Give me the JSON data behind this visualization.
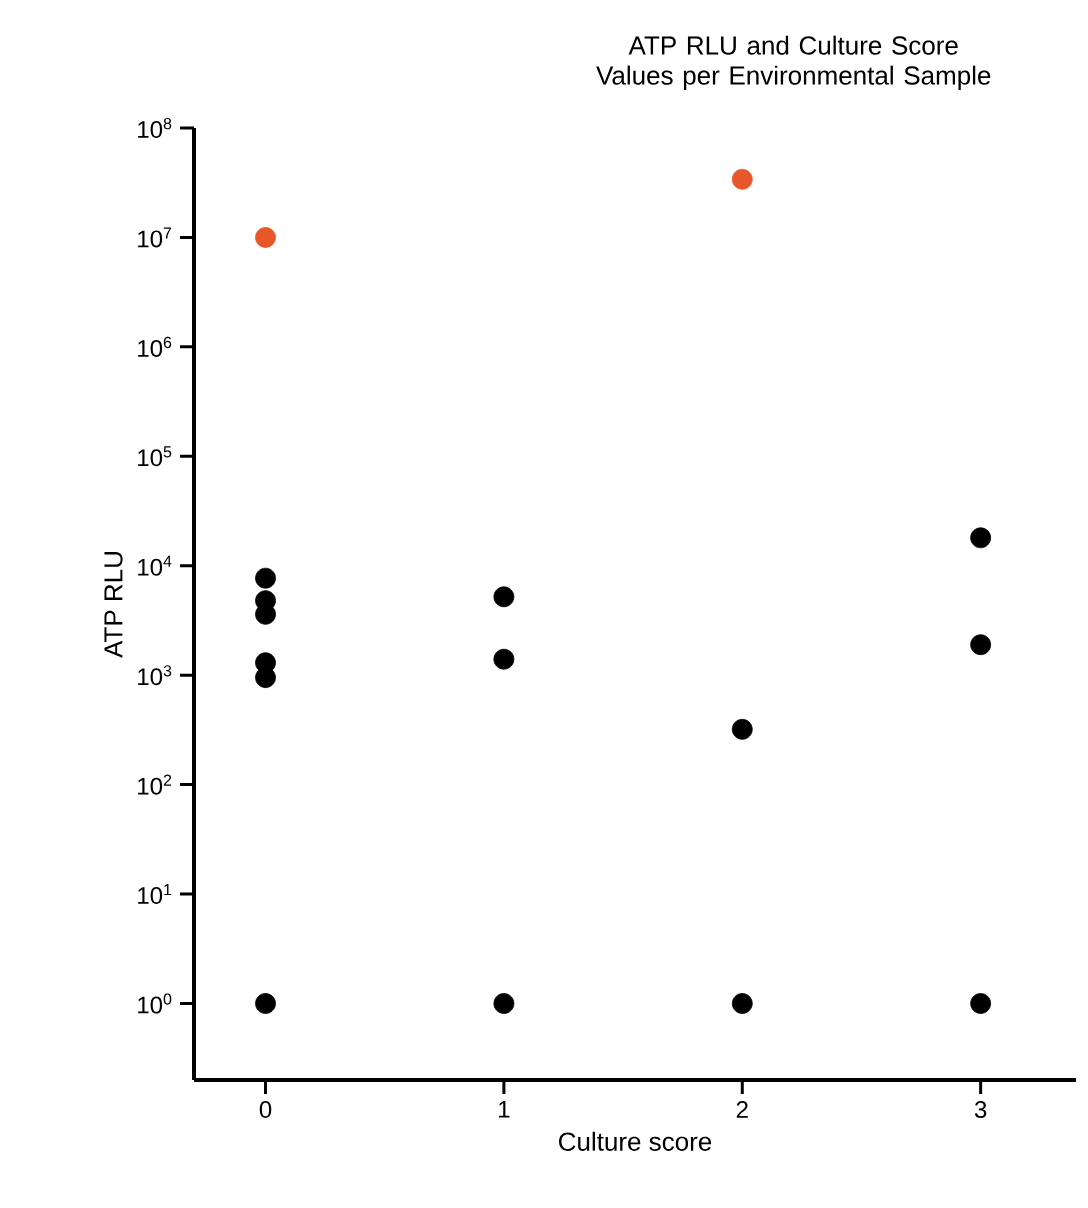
{
  "chart_data": {
    "type": "scatter",
    "title": "ATP RLU and Culture Score Values per Environmental Sample",
    "xlabel": "Culture score",
    "ylabel": "ATP RLU",
    "log": "y",
    "marker": "circle",
    "grid": false,
    "xlim": [
      -0.3,
      3.4
    ],
    "xticks": [
      0,
      1,
      2,
      3
    ],
    "ylim": [
      0.2,
      100000000
    ],
    "yticks": [
      {
        "value": 1,
        "label": "10$^{0}$"
      },
      {
        "value": 10,
        "label": "10$^{1}$"
      },
      {
        "value": 100,
        "label": "10$^{2}$"
      },
      {
        "value": 1000,
        "label": "10$^{3}$"
      },
      {
        "value": 10000,
        "label": "10$^{4}$"
      },
      {
        "value": 100000,
        "label": "10$^{5}$"
      },
      {
        "value": 1000000,
        "label": "10$^{6}$"
      },
      {
        "value": 10000000,
        "label": "10$^{7}$"
      },
      {
        "value": 100000000,
        "label": "10$^{8}$"
      }
    ],
    "series": [
      {
        "color": "#000000",
        "x": [
          0,
          0,
          0,
          0,
          0,
          0,
          1,
          1,
          1,
          2,
          2,
          3,
          3,
          3
        ],
        "values": [
          7700,
          4800,
          3600,
          1300,
          950,
          1,
          5200,
          1400,
          1,
          320,
          1,
          18000,
          1900,
          1
        ]
      },
      {
        "color": "#e8572a",
        "x": [
          0,
          2
        ],
        "values": [
          10000000,
          34000000
        ]
      }
    ]
  }
}
